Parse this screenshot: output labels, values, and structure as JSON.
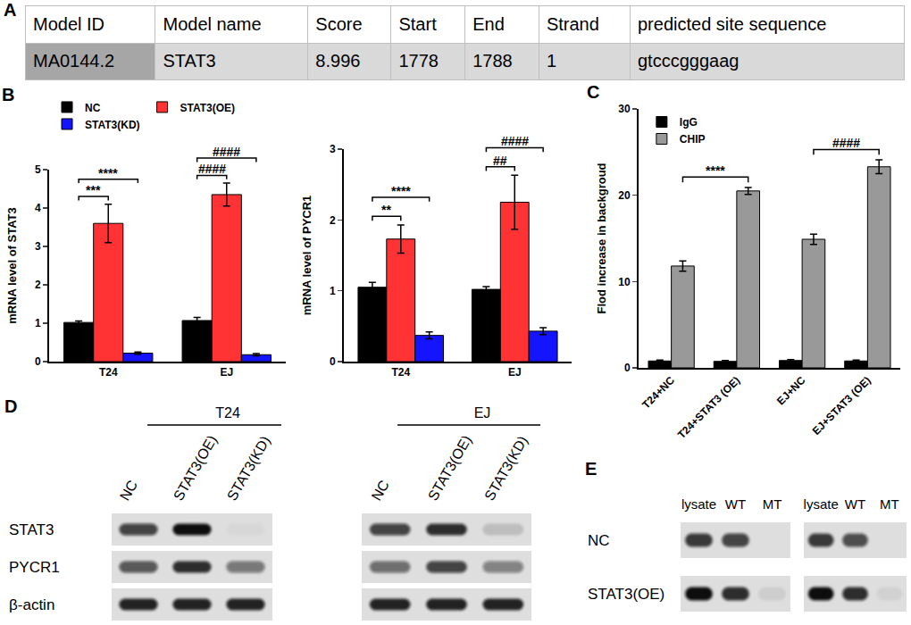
{
  "panel_A": {
    "label": "A",
    "table": {
      "header": [
        "Model ID",
        "Model name",
        "Score",
        "Start",
        "End",
        "Strand",
        "predicted site sequence"
      ],
      "rows": [
        [
          "MA0144.2",
          "STAT3",
          8.996,
          1778,
          1788,
          1,
          "gtcccgggaag"
        ]
      ]
    }
  },
  "chart_data": [
    {
      "panel": "B",
      "type": "bar",
      "categories": [
        "T24",
        "EJ"
      ],
      "y_label": "mRNA level of STAT3",
      "ylim": [
        0,
        5
      ],
      "yticks": [
        0,
        1,
        2,
        3,
        4,
        5
      ],
      "legend": "top",
      "series": [
        {
          "name": "NC",
          "color": "#000000",
          "values": [
            1.02,
            1.07
          ],
          "errors": [
            0.04,
            0.08
          ]
        },
        {
          "name": "STAT3(OE)",
          "color": "#ff3333",
          "values": [
            3.6,
            4.35
          ],
          "errors": [
            0.5,
            0.3
          ]
        },
        {
          "name": "STAT3(KD)",
          "color": "#1414ff",
          "values": [
            0.22,
            0.18
          ],
          "errors": [
            0.03,
            0.03
          ]
        }
      ],
      "annotations": [
        {
          "text": "***",
          "from": [
            "T24",
            "NC"
          ],
          "to": [
            "T24",
            "STAT3(OE)"
          ]
        },
        {
          "text": "****",
          "from": [
            "T24",
            "NC"
          ],
          "to": [
            "T24",
            "STAT3(KD)"
          ]
        },
        {
          "text": "####",
          "from": [
            "EJ",
            "NC"
          ],
          "to": [
            "EJ",
            "STAT3(OE)"
          ]
        },
        {
          "text": "####",
          "from": [
            "EJ",
            "NC"
          ],
          "to": [
            "EJ",
            "STAT3(KD)"
          ]
        }
      ]
    },
    {
      "type": "bar",
      "categories": [
        "T24",
        "EJ"
      ],
      "y_label": "mRNA level of PYCR1",
      "ylim": [
        0,
        3
      ],
      "yticks": [
        0,
        1,
        2,
        3
      ],
      "series": [
        {
          "name": "NC",
          "color": "#000000",
          "values": [
            1.05,
            1.02
          ],
          "errors": [
            0.07,
            0.04
          ]
        },
        {
          "name": "STAT3(OE)",
          "color": "#ff3333",
          "values": [
            1.73,
            2.25
          ],
          "errors": [
            0.2,
            0.38
          ]
        },
        {
          "name": "STAT3(KD)",
          "color": "#1414ff",
          "values": [
            0.37,
            0.43
          ],
          "errors": [
            0.05,
            0.05
          ]
        }
      ],
      "annotations": [
        {
          "text": "**",
          "from": [
            "T24",
            "NC"
          ],
          "to": [
            "T24",
            "STAT3(OE)"
          ]
        },
        {
          "text": "****",
          "from": [
            "T24",
            "NC"
          ],
          "to": [
            "T24",
            "STAT3(KD)"
          ]
        },
        {
          "text": "##",
          "from": [
            "EJ",
            "NC"
          ],
          "to": [
            "EJ",
            "STAT3(OE)"
          ]
        },
        {
          "text": "####",
          "from": [
            "EJ",
            "NC"
          ],
          "to": [
            "EJ",
            "STAT3(KD)"
          ]
        }
      ]
    },
    {
      "panel": "C",
      "type": "bar",
      "categories": [
        "T24+NC",
        "T24+STAT3 (OE)",
        "EJ+NC",
        "EJ+STAT3 (OE)"
      ],
      "y_label": "Flod increase in backgroud",
      "ylim": [
        0,
        30
      ],
      "yticks": [
        0,
        10,
        20,
        30
      ],
      "legend": "top left",
      "series": [
        {
          "name": "IgG",
          "color": "#000000",
          "values": [
            0.8,
            0.75,
            0.85,
            0.8
          ],
          "errors": [
            0.1,
            0.1,
            0.1,
            0.1
          ]
        },
        {
          "name": "CHIP",
          "color": "#999999",
          "values": [
            11.8,
            20.5,
            14.9,
            23.3
          ],
          "errors": [
            0.6,
            0.4,
            0.6,
            0.8
          ]
        }
      ],
      "annotations": [
        {
          "text": "****",
          "from": [
            "T24+NC",
            "CHIP"
          ],
          "to": [
            "T24+STAT3 (OE)",
            "CHIP"
          ]
        },
        {
          "text": "####",
          "from": [
            "EJ+NC",
            "CHIP"
          ],
          "to": [
            "EJ+STAT3 (OE)",
            "CHIP"
          ]
        }
      ]
    }
  ],
  "panel_D": {
    "label": "D",
    "groups": [
      {
        "name": "T24",
        "lanes": [
          "NC",
          "STAT3(OE)",
          "STAT3(KD)"
        ]
      },
      {
        "name": "EJ",
        "lanes": [
          "NC",
          "STAT3(OE)",
          "STAT3(KD)"
        ]
      }
    ],
    "rows": [
      {
        "name": "STAT3",
        "intensity": [
          0.75,
          1.0,
          0.03,
          0.75,
          0.85,
          0.15
        ]
      },
      {
        "name": "PYCR1",
        "intensity": [
          0.65,
          0.85,
          0.5,
          0.55,
          0.75,
          0.45
        ]
      },
      {
        "name": "β-actin",
        "intensity": [
          0.9,
          0.9,
          0.9,
          0.9,
          0.9,
          0.9
        ]
      }
    ]
  },
  "panel_E": {
    "label": "E",
    "lanes": [
      "lysate",
      "WT",
      "MT"
    ],
    "rows": [
      "NC",
      "STAT3(OE)"
    ],
    "blots": [
      {
        "intensity": [
          [
            0.8,
            0.75,
            0.0
          ],
          [
            1.0,
            0.85,
            0.08
          ]
        ]
      },
      {
        "intensity": [
          [
            0.8,
            0.7,
            0.0
          ],
          [
            1.0,
            0.85,
            0.06
          ]
        ]
      }
    ]
  }
}
